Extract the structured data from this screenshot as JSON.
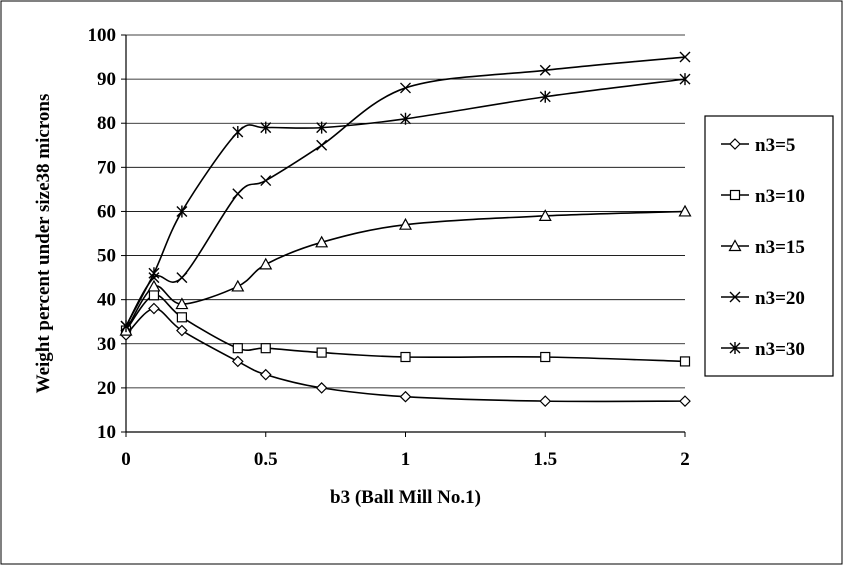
{
  "chart_data": {
    "type": "line",
    "title": "",
    "xlabel": "b3 (Ball Mill No.1)",
    "ylabel": "Weight percent under size38 microns",
    "xlim": [
      0,
      2
    ],
    "ylim": [
      10,
      100
    ],
    "x_ticks": [
      "0",
      "0.5",
      "1",
      "1.5",
      "2"
    ],
    "y_ticks": [
      "10",
      "20",
      "30",
      "40",
      "50",
      "60",
      "70",
      "80",
      "90",
      "100"
    ],
    "grid": "horizontal",
    "legend_position": "right",
    "series": [
      {
        "name": "n3=5",
        "marker": "diamond",
        "x": [
          0,
          0.1,
          0.2,
          0.4,
          0.5,
          0.7,
          1,
          1.5,
          2
        ],
        "values": [
          32,
          38,
          33,
          26,
          23,
          20,
          18,
          17,
          17
        ]
      },
      {
        "name": "n3=10",
        "marker": "square",
        "x": [
          0,
          0.1,
          0.2,
          0.4,
          0.5,
          0.7,
          1,
          1.5,
          2
        ],
        "values": [
          33,
          41,
          36,
          29,
          29,
          28,
          27,
          27,
          26
        ]
      },
      {
        "name": "n3=15",
        "marker": "triangle",
        "x": [
          0,
          0.1,
          0.2,
          0.4,
          0.5,
          0.7,
          1,
          1.5,
          2
        ],
        "values": [
          33,
          43,
          39,
          43,
          48,
          53,
          57,
          59,
          60
        ]
      },
      {
        "name": "n3=20",
        "marker": "x",
        "x": [
          0,
          0.1,
          0.2,
          0.4,
          0.5,
          0.7,
          1,
          1.5,
          2
        ],
        "values": [
          34,
          45,
          45,
          64,
          67,
          75,
          88,
          92,
          95
        ]
      },
      {
        "name": "n3=30",
        "marker": "star",
        "x": [
          0,
          0.1,
          0.2,
          0.4,
          0.5,
          0.7,
          1,
          1.5,
          2
        ],
        "values": [
          34,
          46,
          60,
          78,
          79,
          79,
          81,
          86,
          90
        ]
      }
    ]
  }
}
